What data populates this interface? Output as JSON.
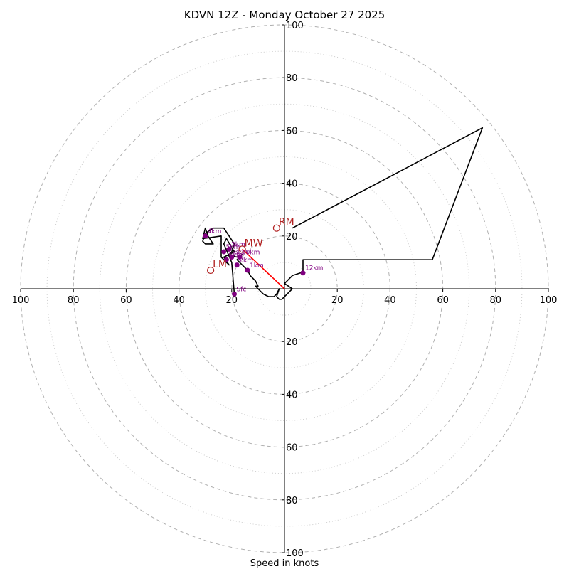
{
  "chart_data": {
    "type": "hodograph",
    "title": "KDVN 12Z - Monday October 27 2025",
    "xlabel": "Speed in knots",
    "ylabel": "",
    "xlim": [
      -100,
      100
    ],
    "ylim": [
      -100,
      100
    ],
    "major_rings": [
      20,
      40,
      60,
      80,
      100
    ],
    "minor_rings": [
      10,
      30,
      50,
      70,
      90
    ],
    "x_ticks": [
      {
        "value": -100,
        "label": "100"
      },
      {
        "value": -80,
        "label": "80"
      },
      {
        "value": -60,
        "label": "60"
      },
      {
        "value": -40,
        "label": "40"
      },
      {
        "value": -20,
        "label": "20"
      },
      {
        "value": 20,
        "label": "20"
      },
      {
        "value": 40,
        "label": "40"
      },
      {
        "value": 60,
        "label": "60"
      },
      {
        "value": 80,
        "label": "80"
      },
      {
        "value": 100,
        "label": "100"
      }
    ],
    "y_ticks": [
      {
        "value": 100,
        "label": "100"
      },
      {
        "value": 80,
        "label": "80"
      },
      {
        "value": 60,
        "label": "60"
      },
      {
        "value": 40,
        "label": "40"
      },
      {
        "value": 20,
        "label": "20"
      },
      {
        "value": -20,
        "label": "20"
      },
      {
        "value": -40,
        "label": "40"
      },
      {
        "value": -60,
        "label": "60"
      },
      {
        "value": -80,
        "label": "80"
      },
      {
        "value": -100,
        "label": "100"
      }
    ],
    "hodograph_trace": [
      [
        -19,
        -2
      ],
      [
        -20,
        10
      ],
      [
        -23,
        17
      ],
      [
        -22,
        19
      ],
      [
        -19,
        14
      ],
      [
        -23,
        12
      ],
      [
        -21,
        9
      ],
      [
        -24,
        12
      ],
      [
        -24,
        18
      ],
      [
        -24,
        20
      ],
      [
        -31,
        19
      ],
      [
        -30,
        23
      ],
      [
        -29,
        20
      ],
      [
        -27,
        17
      ],
      [
        -30,
        17
      ],
      [
        -31,
        18
      ],
      [
        -30,
        21
      ],
      [
        -27,
        23
      ],
      [
        -23,
        23
      ],
      [
        -19,
        17
      ],
      [
        -20,
        14
      ],
      [
        -21,
        13
      ],
      [
        -18,
        12
      ],
      [
        -16,
        13
      ],
      [
        -18,
        11
      ],
      [
        -16,
        9
      ],
      [
        -14,
        7
      ],
      [
        -13,
        5
      ],
      [
        -12,
        4
      ],
      [
        -11,
        3
      ],
      [
        -10,
        1
      ],
      [
        -11,
        1
      ],
      [
        -8,
        -2
      ],
      [
        -6,
        -3
      ],
      [
        -4,
        -3
      ],
      [
        -3,
        -2
      ],
      [
        -2,
        0
      ],
      [
        -3,
        -3
      ],
      [
        -2,
        -4
      ],
      [
        -1,
        -4
      ],
      [
        1,
        -2
      ],
      [
        3,
        0
      ],
      [
        0,
        2
      ],
      [
        1,
        3
      ],
      [
        3,
        5
      ],
      [
        6,
        6
      ],
      [
        7,
        7
      ],
      [
        7,
        11
      ],
      [
        56,
        11
      ],
      [
        75,
        61
      ],
      [
        3,
        23
      ]
    ],
    "height_markers": [
      {
        "label": "Sfc",
        "u": -19,
        "v": -2
      },
      {
        "label": "1km",
        "u": -14,
        "v": 7
      },
      {
        "label": "2km",
        "u": -18,
        "v": 9
      },
      {
        "label": "3km",
        "u": -21,
        "v": 15
      },
      {
        "label": "4km",
        "u": -30,
        "v": 20
      },
      {
        "label": "5km",
        "u": -23,
        "v": 14
      },
      {
        "label": "6km",
        "u": -22,
        "v": 11
      },
      {
        "label": "8km",
        "u": -20,
        "v": 12
      },
      {
        "label": "10km",
        "u": -17,
        "v": 12
      },
      {
        "label": "12km",
        "u": 7,
        "v": 6
      }
    ],
    "storm_motions": [
      {
        "label": "RM",
        "u": -3,
        "v": 23
      },
      {
        "label": "LM",
        "u": -28,
        "v": 7
      },
      {
        "label": "MW",
        "u": -16,
        "v": 15
      }
    ],
    "shear_vector": {
      "from": [
        0,
        0
      ],
      "to": [
        -16,
        15
      ],
      "color": "#ff0000"
    },
    "colors": {
      "trace": "#000000",
      "markers": "#800080",
      "motions": "#b22222",
      "grid": "#b0b0b0"
    }
  }
}
